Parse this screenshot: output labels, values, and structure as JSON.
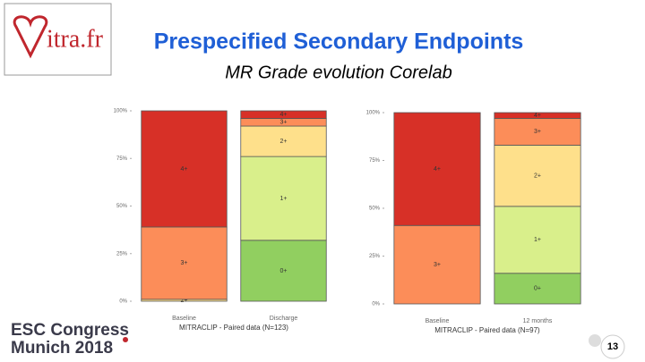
{
  "slide": {
    "logo": "itra.fr",
    "title": "Prespecified Secondary Endpoints",
    "subtitle": "MR Grade evolution Corelab",
    "footer_line1": "ESC Congress",
    "footer_line2": "Munich 2018",
    "page_number": "13"
  },
  "chart_data": [
    {
      "type": "stacked_bar",
      "x_label": "MITRACLIP - Paired data (N=123)",
      "categories": [
        "Baseline",
        "Discharge"
      ],
      "ylim": [
        0,
        100
      ],
      "yticks": [
        {
          "value": 0,
          "label": "0%"
        },
        {
          "value": 25,
          "label": "25%"
        },
        {
          "value": 50,
          "label": "50%"
        },
        {
          "value": 75,
          "label": "75%"
        },
        {
          "value": 100,
          "label": "100%"
        }
      ],
      "series": [
        {
          "name": "0+",
          "color": "#91cf60",
          "values": [
            null,
            32
          ]
        },
        {
          "name": "1+",
          "color": "#d9ef8b",
          "values": [
            null,
            44
          ]
        },
        {
          "name": "2+",
          "color": "#fee08b",
          "values": [
            1,
            16
          ]
        },
        {
          "name": "3+",
          "color": "#fc8d59",
          "values": [
            38,
            4
          ]
        },
        {
          "name": "4+",
          "color": "#d73027",
          "values": [
            61,
            4
          ]
        }
      ]
    },
    {
      "type": "stacked_bar",
      "x_label": "MITRACLIP - Paired data (N=97)",
      "categories": [
        "Baseline",
        "12 months"
      ],
      "ylim": [
        0,
        100
      ],
      "yticks": [
        {
          "value": 0,
          "label": "0%"
        },
        {
          "value": 25,
          "label": "25%"
        },
        {
          "value": 50,
          "label": "50%"
        },
        {
          "value": 75,
          "label": "75%"
        },
        {
          "value": 100,
          "label": "100%"
        }
      ],
      "series": [
        {
          "name": "0+",
          "color": "#91cf60",
          "values": [
            null,
            16
          ]
        },
        {
          "name": "1+",
          "color": "#d9ef8b",
          "values": [
            null,
            35
          ]
        },
        {
          "name": "2+",
          "color": "#fee08b",
          "values": [
            null,
            32
          ]
        },
        {
          "name": "3+",
          "color": "#fc8d59",
          "values": [
            41,
            14
          ]
        },
        {
          "name": "4+",
          "color": "#d73027",
          "values": [
            59,
            3
          ]
        }
      ]
    }
  ]
}
